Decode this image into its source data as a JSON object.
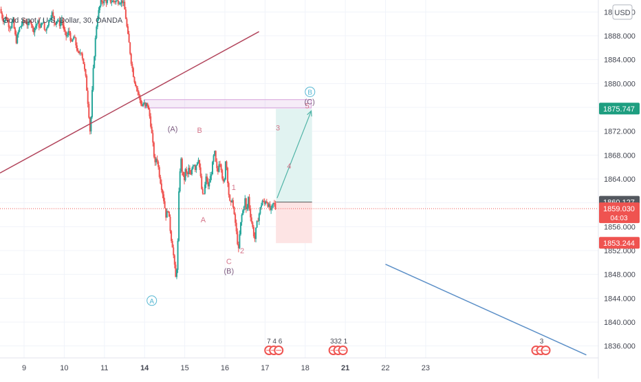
{
  "symbol_title": "Gold Spot / U.S. Dollar, 30, OANDA",
  "currency_button": "USD",
  "colors": {
    "up": "#26a69a",
    "down": "#ef5350",
    "trendline_red": "#b2455c",
    "trendline_blue": "#5b8fc7",
    "wave_purple": "#7b5a7f",
    "wave_pink": "#d5758a",
    "wave_cyan": "#56b7d2",
    "target_fill": "#e1f3f1",
    "stop_fill": "#fde4e4",
    "badge_green": "#1e9e80",
    "badge_grey": "#54585f",
    "badge_red": "#ef5350"
  },
  "chart_data": {
    "type": "candlestick",
    "title": "Gold Spot / U.S. Dollar, 30, OANDA",
    "x_ticks": [
      "9",
      "10",
      "11",
      "14",
      "15",
      "16",
      "17",
      "18",
      "21",
      "22",
      "23"
    ],
    "bold_x_ticks": [
      "14",
      "21"
    ],
    "y_ticks": [
      1836,
      1840,
      1844,
      1848,
      1852,
      1856,
      1860,
      1864,
      1868,
      1872,
      1876,
      1880,
      1884,
      1888,
      1892
    ],
    "y_tick_labels": [
      "1836.000",
      "1840.000",
      "1844.000",
      "1848.000",
      "1852.000",
      "1856.000",
      "1860.000",
      "1864.000",
      "1868.000",
      "1872.000",
      "1876.000",
      "1880.000",
      "1884.000",
      "1888.000",
      "1892.000"
    ],
    "ylim": [
      1834,
      1894
    ],
    "xlim": [
      8.4,
      23.3
    ],
    "price_labels": [
      {
        "text": "1875.747",
        "value": 1875.747,
        "sub": "",
        "color_key": "badge_green"
      },
      {
        "text": "1860.127",
        "value": 1860.127,
        "sub": "",
        "color_key": "badge_grey"
      },
      {
        "text": "1859.030",
        "value": 1859.03,
        "sub": "04:03",
        "color_key": "badge_red"
      },
      {
        "text": "1853.244",
        "value": 1853.244,
        "sub": "",
        "color_key": "badge_red"
      }
    ],
    "current_price": 1859.03,
    "price_path": [
      [
        8.4,
        1892.5
      ],
      [
        8.45,
        1891.2
      ],
      [
        8.5,
        1890.4
      ],
      [
        8.55,
        1891.3
      ],
      [
        8.6,
        1890.0
      ],
      [
        8.66,
        1889.4
      ],
      [
        8.72,
        1890.6
      ],
      [
        8.8,
        1887.0
      ],
      [
        8.88,
        1889.2
      ],
      [
        8.96,
        1890.2
      ],
      [
        9.04,
        1890.4
      ],
      [
        9.1,
        1889.7
      ],
      [
        9.16,
        1890.8
      ],
      [
        9.22,
        1888.8
      ],
      [
        9.28,
        1889.6
      ],
      [
        9.34,
        1890.3
      ],
      [
        9.4,
        1889.2
      ],
      [
        9.46,
        1890.7
      ],
      [
        9.52,
        1888.6
      ],
      [
        9.58,
        1889.9
      ],
      [
        9.64,
        1891.0
      ],
      [
        9.7,
        1891.8
      ],
      [
        9.76,
        1890.0
      ],
      [
        9.82,
        1890.8
      ],
      [
        9.88,
        1889.9
      ],
      [
        9.94,
        1890.8
      ],
      [
        10.0,
        1888.5
      ],
      [
        10.06,
        1887.8
      ],
      [
        10.12,
        1888.9
      ],
      [
        10.18,
        1886.6
      ],
      [
        10.24,
        1887.9
      ],
      [
        10.3,
        1886.2
      ],
      [
        10.36,
        1884.6
      ],
      [
        10.42,
        1885.6
      ],
      [
        10.48,
        1883.4
      ],
      [
        10.54,
        1880.6
      ],
      [
        10.58,
        1877.5
      ],
      [
        10.62,
        1874.2
      ],
      [
        10.65,
        1871.2
      ],
      [
        10.68,
        1876.5
      ],
      [
        10.72,
        1882.0
      ],
      [
        10.76,
        1886.0
      ],
      [
        10.8,
        1889.6
      ],
      [
        10.84,
        1891.5
      ],
      [
        10.88,
        1892.8
      ],
      [
        10.92,
        1893.8
      ],
      [
        11.46,
        1893.8
      ],
      [
        11.5,
        1892.6
      ],
      [
        11.54,
        1890.6
      ],
      [
        11.58,
        1888.2
      ],
      [
        11.62,
        1886.4
      ],
      [
        11.66,
        1884.0
      ],
      [
        11.7,
        1882.3
      ],
      [
        11.74,
        1880.7
      ],
      [
        11.78,
        1879.8
      ],
      [
        11.82,
        1878.9
      ],
      [
        11.86,
        1877.8
      ],
      [
        11.9,
        1876.9
      ],
      [
        11.94,
        1876.2
      ],
      [
        11.98,
        1876.8
      ],
      [
        12.02,
        1875.9
      ],
      [
        12.06,
        1876.9
      ],
      [
        12.1,
        1875.4
      ],
      [
        12.14,
        1874.0
      ],
      [
        12.18,
        1871.5
      ],
      [
        12.22,
        1868.8
      ],
      [
        12.26,
        1866.4
      ],
      [
        12.3,
        1867.9
      ],
      [
        12.34,
        1866.0
      ],
      [
        12.38,
        1864.2
      ],
      [
        12.42,
        1862.7
      ],
      [
        12.46,
        1861.3
      ],
      [
        12.5,
        1859.4
      ],
      [
        12.54,
        1857.4
      ],
      [
        12.58,
        1859.3
      ],
      [
        12.62,
        1856.7
      ],
      [
        12.66,
        1854.2
      ],
      [
        12.7,
        1852.6
      ],
      [
        12.74,
        1849.7
      ],
      [
        12.78,
        1847.0
      ],
      [
        12.82,
        1851.0
      ],
      [
        12.86,
        1863.0
      ],
      [
        12.9,
        1867.7
      ],
      [
        12.94,
        1865.2
      ],
      [
        12.98,
        1863.4
      ],
      [
        13.02,
        1865.6
      ],
      [
        13.06,
        1864.4
      ],
      [
        13.1,
        1865.7
      ],
      [
        13.14,
        1864.0
      ],
      [
        13.18,
        1865.8
      ],
      [
        13.22,
        1866.9
      ],
      [
        13.26,
        1865.8
      ],
      [
        13.3,
        1866.8
      ],
      [
        13.34,
        1867.6
      ],
      [
        13.38,
        1865.2
      ],
      [
        13.42,
        1862.4
      ],
      [
        13.46,
        1860.7
      ],
      [
        13.5,
        1862.8
      ],
      [
        13.54,
        1864.6
      ],
      [
        13.58,
        1862.4
      ],
      [
        13.62,
        1863.8
      ],
      [
        13.66,
        1864.9
      ],
      [
        13.7,
        1866.8
      ],
      [
        13.74,
        1868.7
      ],
      [
        13.78,
        1866.2
      ],
      [
        13.82,
        1864.8
      ],
      [
        13.86,
        1867.2
      ],
      [
        13.9,
        1866.4
      ],
      [
        13.94,
        1864.1
      ],
      [
        13.98,
        1862.5
      ],
      [
        14.02,
        1867.8
      ],
      [
        14.06,
        1864.6
      ],
      [
        14.1,
        1861.2
      ],
      [
        14.14,
        1859.2
      ],
      [
        14.18,
        1860.9
      ],
      [
        14.22,
        1858.2
      ],
      [
        14.26,
        1856.6
      ],
      [
        14.3,
        1854.1
      ],
      [
        14.34,
        1852.0
      ],
      [
        14.38,
        1855.8
      ],
      [
        14.42,
        1857.9
      ],
      [
        14.46,
        1859.0
      ],
      [
        14.5,
        1860.7
      ],
      [
        14.54,
        1858.0
      ],
      [
        14.58,
        1861.1
      ],
      [
        14.62,
        1858.6
      ],
      [
        14.66,
        1857.0
      ],
      [
        14.7,
        1855.5
      ],
      [
        14.74,
        1853.7
      ],
      [
        14.78,
        1855.9
      ],
      [
        14.82,
        1857.2
      ],
      [
        14.86,
        1858.4
      ],
      [
        14.9,
        1859.6
      ],
      [
        14.94,
        1860.5
      ],
      [
        14.98,
        1859.6
      ],
      [
        15.02,
        1860.6
      ],
      [
        15.06,
        1859.9
      ],
      [
        15.1,
        1859.3
      ],
      [
        15.14,
        1858.5
      ],
      [
        15.18,
        1859.4
      ],
      [
        15.22,
        1860.1
      ],
      [
        15.26,
        1859.03
      ]
    ],
    "trendlines": [
      {
        "color_key": "trendline_red",
        "from": [
          8.4,
          1865.0
        ],
        "to": [
          14.85,
          1888.7
        ]
      },
      {
        "color_key": "trendline_blue",
        "from": [
          18.0,
          1849.7
        ],
        "to": [
          23.0,
          1834.5
        ]
      }
    ],
    "position": {
      "x_start": 15.27,
      "x_end": 16.17,
      "entry": 1860.127,
      "target": 1875.747,
      "stop": 1853.244
    },
    "resistance_zone": {
      "x_start": 12.0,
      "x_end": 16.15,
      "y_low": 1875.9,
      "y_high": 1877.3
    },
    "projection_arrow": {
      "from": [
        15.3,
        1860.8
      ],
      "to": [
        16.15,
        1875.4
      ]
    },
    "wave_labels": [
      {
        "text": "(A)",
        "x": 12.7,
        "y": 1872.4,
        "color_key": "wave_purple",
        "circle": false
      },
      {
        "text": "B",
        "x": 13.37,
        "y": 1872.2,
        "color_key": "wave_pink",
        "circle": false
      },
      {
        "text": "A",
        "x": 13.46,
        "y": 1857.2,
        "color_key": "wave_pink",
        "circle": false
      },
      {
        "text": "1",
        "x": 14.22,
        "y": 1862.6,
        "color_key": "wave_pink",
        "circle": false
      },
      {
        "text": "C",
        "x": 14.1,
        "y": 1850.2,
        "color_key": "wave_pink",
        "circle": false
      },
      {
        "text": "(B)",
        "x": 14.1,
        "y": 1848.6,
        "color_key": "wave_purple",
        "circle": false
      },
      {
        "text": "2",
        "x": 14.43,
        "y": 1852.0,
        "color_key": "wave_pink",
        "circle": false
      },
      {
        "text": "3",
        "x": 15.32,
        "y": 1872.6,
        "color_key": "wave_pink",
        "circle": false
      },
      {
        "text": "4",
        "x": 15.6,
        "y": 1866.2,
        "color_key": "wave_pink",
        "circle": false
      },
      {
        "text": "5",
        "x": 16.05,
        "y": 1876.3,
        "color_key": "wave_pink",
        "circle": false
      },
      {
        "text": "(C)",
        "x": 16.11,
        "y": 1877.0,
        "color_key": "wave_purple",
        "circle": false
      },
      {
        "text": "B",
        "x": 16.12,
        "y": 1878.6,
        "color_key": "wave_cyan",
        "circle": true
      },
      {
        "text": "A",
        "x": 12.18,
        "y": 1843.6,
        "color_key": "wave_cyan",
        "circle": true
      }
    ],
    "event_markers": [
      {
        "x": 15.1,
        "text": "7 4 6"
      },
      {
        "x": 16.7,
        "text": "332 1"
      },
      {
        "x": 21.75,
        "text": "3"
      }
    ]
  }
}
